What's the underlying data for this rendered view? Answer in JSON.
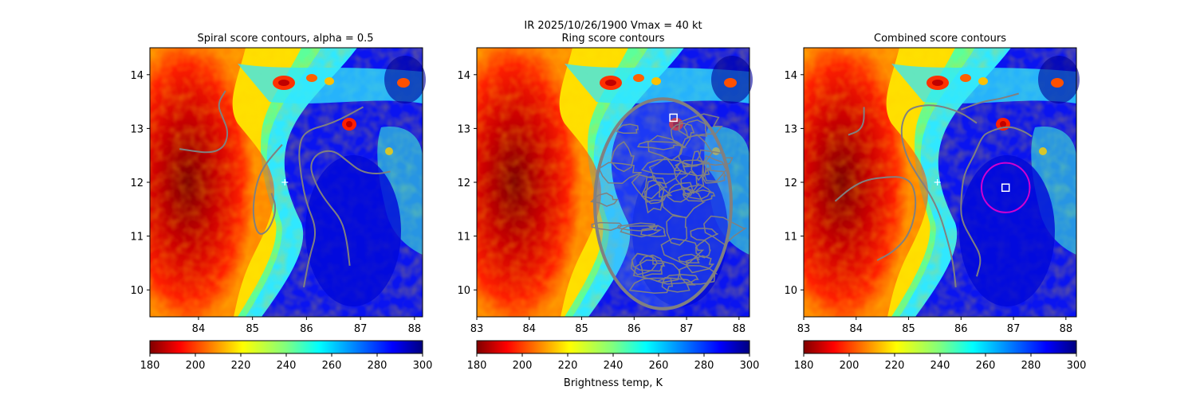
{
  "figure": {
    "suptitle": "IR  2025/10/26/1900    Vmax = 40 kt",
    "colorbar_label": "Brightness temp, K",
    "colormap": "jet_r"
  },
  "chart_data": [
    {
      "type": "heatmap",
      "title": "Spiral score contours, alpha =  0.5",
      "xlabel": "",
      "ylabel": "",
      "xlim": [
        83.1,
        88.15
      ],
      "ylim": [
        9.5,
        14.5
      ],
      "xticks": [
        "84",
        "85",
        "86",
        "87",
        "88"
      ],
      "yticks": [
        "10",
        "11",
        "12",
        "13",
        "14"
      ],
      "colorbar": {
        "vmin": 180,
        "vmax": 300,
        "ticks": [
          "180",
          "200",
          "220",
          "240",
          "260",
          "280",
          "300"
        ]
      },
      "contour_color": "#808080",
      "contours": [
        [
          [
            83.65,
            12.62
          ],
          [
            83.9,
            12.58
          ],
          [
            84.15,
            12.55
          ],
          [
            84.35,
            12.58
          ],
          [
            84.5,
            12.7
          ],
          [
            84.55,
            12.95
          ],
          [
            84.45,
            13.2
          ],
          [
            84.35,
            13.45
          ],
          [
            84.5,
            13.7
          ]
        ],
        [
          [
            85.55,
            12.7
          ],
          [
            85.2,
            12.3
          ],
          [
            85.05,
            11.9
          ],
          [
            85.0,
            11.4
          ],
          [
            85.1,
            11.0
          ],
          [
            85.3,
            11.1
          ],
          [
            85.45,
            11.5
          ],
          [
            85.35,
            11.8
          ]
        ],
        [
          [
            85.95,
            10.05
          ],
          [
            86.05,
            10.6
          ],
          [
            86.2,
            11.1
          ],
          [
            86.0,
            11.6
          ],
          [
            85.9,
            12.1
          ],
          [
            85.85,
            12.6
          ],
          [
            85.95,
            12.95
          ],
          [
            86.5,
            13.1
          ],
          [
            87.05,
            13.4
          ]
        ],
        [
          [
            86.8,
            10.45
          ],
          [
            86.75,
            10.9
          ],
          [
            86.65,
            11.3
          ],
          [
            86.4,
            11.6
          ],
          [
            86.2,
            11.9
          ],
          [
            86.05,
            12.3
          ],
          [
            86.2,
            12.55
          ],
          [
            86.5,
            12.6
          ],
          [
            86.75,
            12.4
          ],
          [
            87.0,
            12.2
          ],
          [
            87.3,
            12.15
          ],
          [
            87.55,
            12.2
          ]
        ]
      ],
      "center_marker": [
        85.6,
        12.0
      ]
    },
    {
      "type": "heatmap",
      "title": "Ring score contours",
      "xlabel": "",
      "ylabel": "",
      "xlim": [
        83.0,
        88.2
      ],
      "ylim": [
        9.5,
        14.5
      ],
      "xticks": [
        "83",
        "84",
        "85",
        "86",
        "87",
        "88"
      ],
      "yticks": [
        "10",
        "11",
        "12",
        "13",
        "14"
      ],
      "colorbar": {
        "vmin": 180,
        "vmax": 300,
        "ticks": [
          "180",
          "200",
          "220",
          "240",
          "260",
          "280",
          "300"
        ]
      },
      "contour_color": "#808080",
      "ring_region": {
        "center": [
          86.55,
          11.6
        ],
        "radius_x": 1.3,
        "radius_y": 1.95
      },
      "best_marker": [
        86.75,
        13.2
      ]
    },
    {
      "type": "heatmap",
      "title": "Combined score contours",
      "xlabel": "",
      "ylabel": "",
      "xlim": [
        83.0,
        88.2
      ],
      "ylim": [
        9.5,
        14.5
      ],
      "xticks": [
        "83",
        "84",
        "85",
        "86",
        "87",
        "88"
      ],
      "yticks": [
        "10",
        "11",
        "12",
        "13",
        "14"
      ],
      "colorbar": {
        "vmin": 180,
        "vmax": 300,
        "ticks": [
          "180",
          "200",
          "220",
          "240",
          "260",
          "280",
          "300"
        ]
      },
      "contour_color": "#808080",
      "contours": [
        [
          [
            83.6,
            11.65
          ],
          [
            83.9,
            11.9
          ],
          [
            84.2,
            12.05
          ],
          [
            84.6,
            12.1
          ],
          [
            84.9,
            12.1
          ],
          [
            85.1,
            11.95
          ],
          [
            85.15,
            11.5
          ],
          [
            85.0,
            11.0
          ],
          [
            84.7,
            10.7
          ],
          [
            84.4,
            10.55
          ]
        ],
        [
          [
            83.85,
            12.88
          ],
          [
            84.05,
            12.95
          ],
          [
            84.15,
            13.1
          ],
          [
            84.15,
            13.4
          ]
        ],
        [
          [
            85.9,
            10.05
          ],
          [
            85.85,
            10.5
          ],
          [
            85.75,
            10.9
          ],
          [
            85.6,
            11.4
          ],
          [
            85.4,
            11.8
          ],
          [
            85.15,
            12.15
          ],
          [
            84.95,
            12.5
          ],
          [
            84.85,
            12.9
          ],
          [
            84.9,
            13.2
          ],
          [
            85.05,
            13.4
          ],
          [
            85.5,
            13.45
          ],
          [
            86.0,
            13.3
          ],
          [
            86.3,
            13.1
          ]
        ],
        [
          [
            86.3,
            10.25
          ],
          [
            86.4,
            10.6
          ],
          [
            86.2,
            10.95
          ],
          [
            86.0,
            11.3
          ],
          [
            86.0,
            11.7
          ],
          [
            86.05,
            12.15
          ],
          [
            86.25,
            12.5
          ],
          [
            86.4,
            12.85
          ],
          [
            86.55,
            12.95
          ],
          [
            86.9,
            13.05
          ],
          [
            87.2,
            12.95
          ],
          [
            87.35,
            12.85
          ]
        ],
        [
          [
            86.0,
            13.35
          ],
          [
            86.4,
            13.5
          ],
          [
            86.75,
            13.55
          ],
          [
            87.1,
            13.65
          ]
        ]
      ],
      "center_marker": [
        85.55,
        12.0
      ],
      "best_marker": [
        86.85,
        11.9
      ],
      "circle": {
        "center": [
          86.85,
          11.9
        ],
        "radius_x": 0.46,
        "radius_y": 0.46,
        "color": "#d000d0"
      }
    }
  ]
}
